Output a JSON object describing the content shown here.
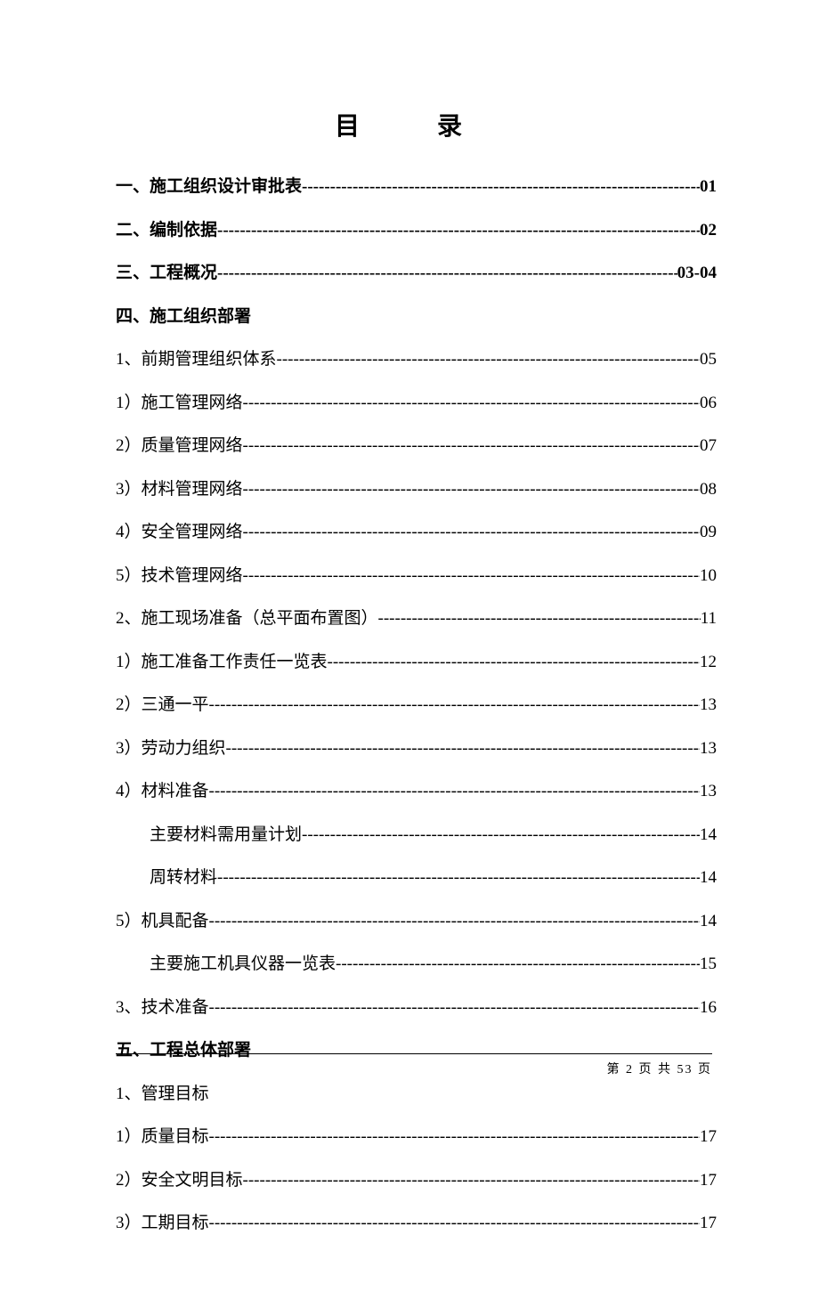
{
  "title": "目  录",
  "entries": [
    {
      "label": "一、施工组织设计审批表",
      "page": "01",
      "bold": true,
      "leader": true,
      "indent": 0
    },
    {
      "label": "二、编制依据",
      "page": "02",
      "bold": true,
      "leader": true,
      "indent": 0
    },
    {
      "label": "三、工程概况",
      "page": "03-04",
      "bold": true,
      "leader": true,
      "indent": 0
    },
    {
      "label": "四、施工组织部署",
      "page": "",
      "bold": true,
      "leader": false,
      "indent": 0
    },
    {
      "label": "1、前期管理组织体系",
      "page": "05",
      "bold": false,
      "leader": true,
      "indent": 0
    },
    {
      "label": "1）施工管理网络",
      "page": "06",
      "bold": false,
      "leader": true,
      "indent": 0
    },
    {
      "label": "2）质量管理网络",
      "page": "07",
      "bold": false,
      "leader": true,
      "indent": 0
    },
    {
      "label": "3）材料管理网络",
      "page": "08",
      "bold": false,
      "leader": true,
      "indent": 0
    },
    {
      "label": "4）安全管理网络",
      "page": "09",
      "bold": false,
      "leader": true,
      "indent": 0
    },
    {
      "label": "5）技术管理网络",
      "page": "10",
      "bold": false,
      "leader": true,
      "indent": 0
    },
    {
      "label": "2、施工现场准备（总平面布置图）",
      "page": "11",
      "bold": false,
      "leader": true,
      "indent": 0
    },
    {
      "label": "1）施工准备工作责任一览表",
      "page": "12",
      "bold": false,
      "leader": true,
      "indent": 0
    },
    {
      "label": "2）三通一平",
      "page": "13",
      "bold": false,
      "leader": true,
      "indent": 0
    },
    {
      "label": "3）劳动力组织",
      "page": "13",
      "bold": false,
      "leader": true,
      "indent": 0
    },
    {
      "label": "4）材料准备",
      "page": "13",
      "bold": false,
      "leader": true,
      "indent": 0
    },
    {
      "label": "主要材料需用量计划",
      "page": "14",
      "bold": false,
      "leader": true,
      "indent": 1
    },
    {
      "label": "周转材料",
      "page": "14",
      "bold": false,
      "leader": true,
      "indent": 1
    },
    {
      "label": "5）机具配备",
      "page": "14",
      "bold": false,
      "leader": true,
      "indent": 0
    },
    {
      "label": "主要施工机具仪器一览表",
      "page": "15",
      "bold": false,
      "leader": true,
      "indent": 1
    },
    {
      "label": "3、技术准备",
      "page": "16",
      "bold": false,
      "leader": true,
      "indent": 0
    },
    {
      "label": "五、工程总体部署",
      "page": "",
      "bold": true,
      "leader": false,
      "indent": 0
    },
    {
      "label": "1、管理目标",
      "page": "",
      "bold": false,
      "leader": false,
      "indent": 0
    },
    {
      "label": "1）质量目标",
      "page": "17",
      "bold": false,
      "leader": true,
      "indent": 0
    },
    {
      "label": "2）安全文明目标",
      "page": "17",
      "bold": false,
      "leader": true,
      "indent": 0
    },
    {
      "label": "3）工期目标",
      "page": "17",
      "bold": false,
      "leader": true,
      "indent": 0
    }
  ],
  "footer": {
    "current_page": "2",
    "total_pages": "53",
    "prefix": "第 ",
    "mid": " 页 共 ",
    "suffix": " 页"
  },
  "colors": {
    "text": "#000000",
    "background": "#ffffff"
  },
  "typography": {
    "title_font": "KaiTi",
    "body_font": "SimSun",
    "title_size_pt": 21,
    "body_size_pt": 14,
    "footer_size_pt": 10
  },
  "leader_char": "-"
}
